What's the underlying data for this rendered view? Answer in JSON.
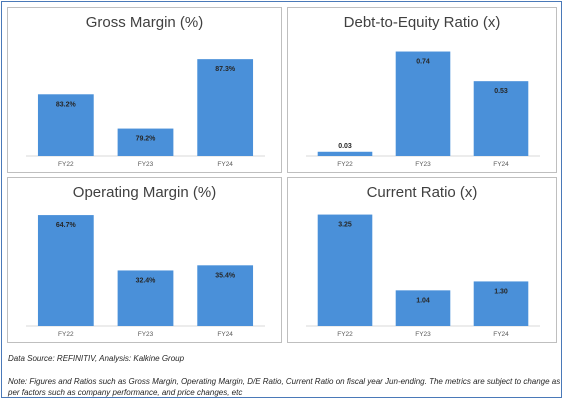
{
  "chart_data": [
    {
      "type": "bar",
      "title": "Gross Margin (%)",
      "categories": [
        "FY22",
        "FY23",
        "FY24"
      ],
      "values": [
        83.2,
        79.2,
        87.3
      ],
      "labels": [
        "83.2%",
        "79.2%",
        "87.3%"
      ],
      "ylim": [
        76,
        90
      ],
      "grid": false,
      "bar_color": "#4a90d9"
    },
    {
      "type": "bar",
      "title": "Debt-to-Equity Ratio (x)",
      "categories": [
        "FY22",
        "FY23",
        "FY24"
      ],
      "values": [
        0.03,
        0.74,
        0.53
      ],
      "labels": [
        "0.03",
        "0.74",
        "0.53"
      ],
      "ylim": [
        0,
        0.85
      ],
      "grid": false,
      "bar_color": "#4a90d9"
    },
    {
      "type": "bar",
      "title": "Operating Margin (%)",
      "categories": [
        "FY22",
        "FY23",
        "FY24"
      ],
      "values": [
        64.7,
        32.4,
        35.4
      ],
      "labels": [
        "64.7%",
        "32.4%",
        "35.4%"
      ],
      "ylim": [
        0,
        70
      ],
      "grid": false,
      "bar_color": "#4a90d9"
    },
    {
      "type": "bar",
      "title": "Current Ratio (x)",
      "categories": [
        "FY22",
        "FY23",
        "FY24"
      ],
      "values": [
        3.25,
        1.04,
        1.3
      ],
      "labels": [
        "3.25",
        "1.04",
        "1.30"
      ],
      "ylim": [
        0,
        3.5
      ],
      "grid": false,
      "bar_color": "#4a90d9"
    }
  ],
  "footer": {
    "source": "Data Source: REFINITIV, Analysis: Kalkine Group",
    "note": "Note: Figures and Ratios such as Gross Margin, Operating Margin, D/E Ratio, Current Ratio on fiscal year Jun-ending. The metrics are subject to change as per factors such as company performance, and price changes, etc"
  }
}
